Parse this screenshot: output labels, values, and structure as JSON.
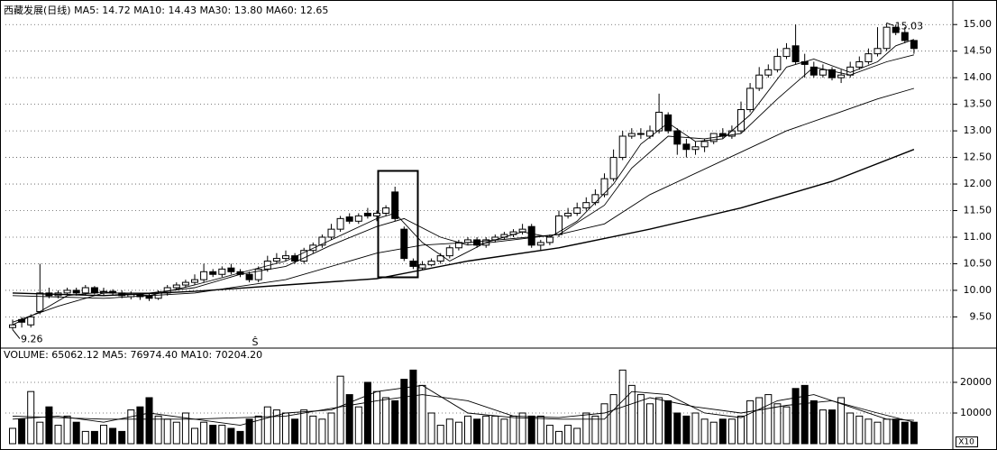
{
  "chart_data": {
    "type": "candlestick",
    "title": "西藏发展(日线) MA5: 14.72 MA10: 14.43 MA30: 13.80 MA60: 12.65",
    "open": [
      9.3,
      9.45,
      9.35,
      9.6,
      9.95,
      9.9,
      9.95,
      10.0,
      9.95,
      10.05,
      9.95,
      9.98,
      9.95,
      9.88,
      9.92,
      9.9,
      9.85,
      9.95,
      10.05,
      10.1,
      10.15,
      10.2,
      10.35,
      10.3,
      10.42,
      10.35,
      10.3,
      10.2,
      10.4,
      10.55,
      10.6,
      10.65,
      10.55,
      10.75,
      10.85,
      11.0,
      11.15,
      11.38,
      11.3,
      11.45,
      11.4,
      11.45,
      11.85,
      11.15,
      10.55,
      10.42,
      10.48,
      10.55,
      10.65,
      10.8,
      10.9,
      10.95,
      10.85,
      10.95,
      11.0,
      11.05,
      11.1,
      11.2,
      10.85,
      10.9,
      11.05,
      11.4,
      11.45,
      11.55,
      11.65,
      11.8,
      12.1,
      12.5,
      12.9,
      12.95,
      12.9,
      13.0,
      13.3,
      13.0,
      12.75,
      12.65,
      12.7,
      12.8,
      12.95,
      12.9,
      13.0,
      13.4,
      13.8,
      14.05,
      14.15,
      14.4,
      14.6,
      14.3,
      14.2,
      14.05,
      14.15,
      14.0,
      14.05,
      14.2,
      14.3,
      14.45,
      14.55,
      14.95,
      14.85,
      14.7
    ],
    "high": [
      9.45,
      9.5,
      9.55,
      10.5,
      10.05,
      10.0,
      10.05,
      10.05,
      10.1,
      10.08,
      10.05,
      10.02,
      10.0,
      9.98,
      9.95,
      9.95,
      10.0,
      10.1,
      10.15,
      10.2,
      10.3,
      10.5,
      10.4,
      10.45,
      10.5,
      10.4,
      10.35,
      10.45,
      10.65,
      10.7,
      10.75,
      10.7,
      10.8,
      10.9,
      11.05,
      11.25,
      11.4,
      11.45,
      11.45,
      11.55,
      11.5,
      11.6,
      11.95,
      11.2,
      10.6,
      10.55,
      10.6,
      10.7,
      10.85,
      10.95,
      11.0,
      11.0,
      11.0,
      11.05,
      11.1,
      11.15,
      11.25,
      11.25,
      10.95,
      11.05,
      11.5,
      11.55,
      11.65,
      11.75,
      11.9,
      12.2,
      12.65,
      13.0,
      13.05,
      13.05,
      13.1,
      13.7,
      13.35,
      13.05,
      12.85,
      12.8,
      12.85,
      12.95,
      13.05,
      13.1,
      13.55,
      13.9,
      14.2,
      14.25,
      14.55,
      14.65,
      15.0,
      14.45,
      14.3,
      14.25,
      14.2,
      14.15,
      14.3,
      14.4,
      14.55,
      14.95,
      15.03,
      15.0,
      14.95,
      14.65
    ],
    "low": [
      9.26,
      9.3,
      9.3,
      9.55,
      9.85,
      9.85,
      9.9,
      9.9,
      9.9,
      9.92,
      9.9,
      9.9,
      9.85,
      9.83,
      9.82,
      9.8,
      9.82,
      9.9,
      10.0,
      10.05,
      10.1,
      10.15,
      10.25,
      10.25,
      10.3,
      10.25,
      10.15,
      10.15,
      10.35,
      10.5,
      10.55,
      10.5,
      10.5,
      10.7,
      10.8,
      10.95,
      11.1,
      11.25,
      11.25,
      11.35,
      11.3,
      11.4,
      11.3,
      10.55,
      10.4,
      10.38,
      10.45,
      10.5,
      10.6,
      10.75,
      10.85,
      10.8,
      10.8,
      10.9,
      10.95,
      11.0,
      11.05,
      10.8,
      10.75,
      10.85,
      11.0,
      11.35,
      11.4,
      11.5,
      11.6,
      11.75,
      12.05,
      12.45,
      12.85,
      12.85,
      12.85,
      12.95,
      12.95,
      12.55,
      12.5,
      12.55,
      12.6,
      12.75,
      12.85,
      12.85,
      12.95,
      13.35,
      13.75,
      14.0,
      14.1,
      14.35,
      14.25,
      14.0,
      14.0,
      14.0,
      13.95,
      13.9,
      14.0,
      14.15,
      14.25,
      14.4,
      14.5,
      14.8,
      14.65,
      14.45
    ],
    "close": [
      9.35,
      9.4,
      9.5,
      9.95,
      9.9,
      9.95,
      10.0,
      9.95,
      10.05,
      9.95,
      9.98,
      9.95,
      9.9,
      9.92,
      9.88,
      9.85,
      9.95,
      10.05,
      10.1,
      10.15,
      10.2,
      10.35,
      10.3,
      10.4,
      10.35,
      10.3,
      10.2,
      10.4,
      10.55,
      10.6,
      10.65,
      10.55,
      10.75,
      10.85,
      11.0,
      11.15,
      11.35,
      11.3,
      11.4,
      11.4,
      11.45,
      11.55,
      11.35,
      10.6,
      10.45,
      10.48,
      10.55,
      10.65,
      10.8,
      10.9,
      10.95,
      10.85,
      10.95,
      11.0,
      11.05,
      11.1,
      11.15,
      10.85,
      10.9,
      11.0,
      11.4,
      11.45,
      11.55,
      11.65,
      11.8,
      12.1,
      12.5,
      12.9,
      12.95,
      12.95,
      13.0,
      13.35,
      13.0,
      12.75,
      12.65,
      12.7,
      12.8,
      12.95,
      12.9,
      13.0,
      13.4,
      13.8,
      14.05,
      14.15,
      14.4,
      14.55,
      14.3,
      14.25,
      14.05,
      14.15,
      14.0,
      14.05,
      14.2,
      14.3,
      14.45,
      14.55,
      14.95,
      14.85,
      14.7,
      14.55
    ],
    "ylim": [
      8.93,
      15.36
    ],
    "yticks": [
      {
        "value": 9.5,
        "label": "9.50"
      },
      {
        "value": 10,
        "label": "10.00"
      },
      {
        "value": 10.5,
        "label": "10.50"
      },
      {
        "value": 11,
        "label": "11.00"
      },
      {
        "value": 11.5,
        "label": "11.50"
      },
      {
        "value": 12,
        "label": "12.00"
      },
      {
        "value": 12.5,
        "label": "12.50"
      },
      {
        "value": 13,
        "label": "13.00"
      },
      {
        "value": 13.5,
        "label": "13.50"
      },
      {
        "value": 14,
        "label": "14.00"
      },
      {
        "value": 14.5,
        "label": "14.50"
      },
      {
        "value": 15,
        "label": "15.00"
      }
    ],
    "grid": true,
    "color": "#000000",
    "ma_lines": [
      {
        "x": [
          0,
          3,
          6,
          10,
          15,
          20,
          25,
          30,
          35,
          40,
          42,
          45,
          48,
          52,
          56,
          59,
          62,
          66,
          69,
          72,
          75,
          78,
          81,
          85,
          88,
          92,
          95,
          97,
          99
        ],
        "values": [
          9.35,
          9.6,
          9.9,
          9.97,
          9.9,
          10.1,
          10.33,
          10.55,
          10.95,
          11.35,
          11.45,
          10.9,
          10.55,
          10.9,
          11.1,
          11.0,
          11.3,
          12.0,
          12.75,
          13.15,
          12.8,
          12.85,
          13.3,
          14.2,
          14.35,
          14.1,
          14.3,
          14.6,
          14.72
        ]
      },
      {
        "x": [
          0,
          5,
          10,
          15,
          20,
          25,
          30,
          35,
          40,
          43,
          47,
          50,
          55,
          60,
          65,
          68,
          72,
          76,
          80,
          84,
          88,
          92,
          96,
          99
        ],
        "values": [
          9.4,
          9.7,
          9.95,
          9.95,
          10.05,
          10.3,
          10.45,
          10.85,
          11.2,
          11.35,
          11.0,
          10.85,
          10.95,
          11.05,
          11.6,
          12.3,
          12.9,
          12.85,
          12.95,
          13.6,
          14.2,
          14.05,
          14.3,
          14.43
        ]
      },
      {
        "x": [
          0,
          10,
          20,
          30,
          40,
          45,
          50,
          60,
          65,
          70,
          80,
          85,
          90,
          95,
          99
        ],
        "values": [
          9.9,
          9.85,
          9.95,
          10.2,
          10.7,
          10.85,
          10.9,
          11.05,
          11.25,
          11.8,
          12.6,
          13.0,
          13.3,
          13.6,
          13.8
        ]
      },
      {
        "x": [
          0,
          10,
          20,
          30,
          40,
          50,
          60,
          70,
          80,
          90,
          99
        ],
        "values": [
          9.95,
          9.9,
          9.98,
          10.1,
          10.22,
          10.55,
          10.8,
          11.15,
          11.55,
          12.05,
          12.65
        ]
      }
    ],
    "annotations": {
      "low": "9.26",
      "high": "15.03",
      "marker": "Ŝ"
    },
    "volume": {
      "title": "VOLUME: 65062.12 MA5: 76974.40 MA10: 70204.20",
      "values": [
        5000,
        8000,
        17000,
        7000,
        12000,
        6000,
        9000,
        7000,
        4000,
        4000,
        6000,
        5000,
        4000,
        11000,
        12000,
        15000,
        9000,
        8000,
        7000,
        10000,
        5000,
        7000,
        6000,
        6000,
        5000,
        4000,
        8000,
        9000,
        12000,
        11000,
        10000,
        8000,
        11000,
        9000,
        8000,
        10000,
        22000,
        16000,
        12000,
        20000,
        17000,
        15000,
        14000,
        21000,
        24000,
        19000,
        10000,
        6000,
        8000,
        7000,
        9000,
        8000,
        9000,
        9000,
        8000,
        9000,
        10000,
        9000,
        9000,
        6000,
        4000,
        6000,
        5000,
        10000,
        9000,
        13000,
        16000,
        24000,
        19000,
        16000,
        13000,
        15000,
        14000,
        10000,
        9000,
        10000,
        8000,
        7000,
        8000,
        8000,
        9000,
        14000,
        15000,
        16000,
        13000,
        12000,
        18000,
        19000,
        14000,
        11000,
        11000,
        15000,
        10000,
        9000,
        8000,
        7000,
        8000,
        8000,
        7000,
        7000
      ],
      "ylim": [
        0,
        29400
      ],
      "yticks": [
        10000,
        20000
      ],
      "unit_label": "X10",
      "ma_lines": [
        {
          "x": [
            0,
            5,
            10,
            15,
            20,
            25,
            30,
            35,
            40,
            45,
            50,
            55,
            60,
            65,
            68,
            72,
            76,
            80,
            84,
            88,
            92,
            96,
            99
          ],
          "values": [
            8000,
            9000,
            7000,
            10000,
            8000,
            6000,
            10000,
            11000,
            17000,
            19000,
            10000,
            8500,
            8000,
            8000,
            17000,
            16000,
            10000,
            8500,
            14000,
            16000,
            12000,
            8000,
            7600
          ]
        },
        {
          "x": [
            0,
            10,
            20,
            30,
            40,
            45,
            50,
            55,
            60,
            65,
            70,
            75,
            80,
            85,
            90,
            95,
            99
          ],
          "values": [
            9000,
            8000,
            8000,
            9000,
            14000,
            16000,
            14000,
            9000,
            8500,
            10000,
            15000,
            12000,
            10000,
            12500,
            14000,
            10000,
            7000
          ]
        }
      ]
    }
  }
}
